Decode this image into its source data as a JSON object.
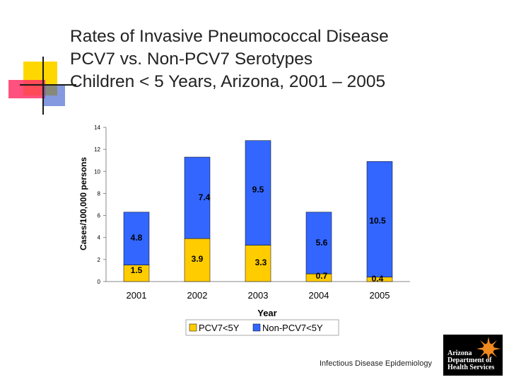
{
  "slide": {
    "title_lines": [
      "Rates of Invasive Pneumococcal Disease",
      "PCV7 vs. Non-PCV7 Serotypes",
      "Children < 5 Years, Arizona, 2001 – 2005"
    ],
    "footer_text": "Infectious Disease Epidemiology",
    "logo_lines": [
      "Arizona",
      "Department of",
      "Health Services"
    ]
  },
  "colors": {
    "pcv7": "#ffcc00",
    "non_pcv7": "#3366ff",
    "deco_yellow": "#ffd700",
    "deco_red": "#ff3366",
    "deco_blue": "#3355cc"
  },
  "chart_data": {
    "type": "bar",
    "stacked": true,
    "categories": [
      "2001",
      "2002",
      "2003",
      "2004",
      "2005"
    ],
    "series": [
      {
        "name": "PCV7<5Y",
        "values": [
          1.5,
          3.9,
          3.3,
          0.7,
          0.4
        ],
        "labels": [
          "1.5",
          "3.9",
          "3.3",
          "0.7",
          "0.4"
        ]
      },
      {
        "name": "Non-PCV7<5Y",
        "values": [
          4.8,
          7.4,
          9.5,
          5.6,
          10.5
        ],
        "labels": [
          "4.8",
          "7.4",
          "9.5",
          "5.6",
          "10.5"
        ]
      }
    ],
    "xlabel": "Year",
    "ylabel": "Cases/100,000 persons",
    "ylim": [
      0,
      14
    ],
    "yticks": [
      "0",
      "2",
      "4",
      "6",
      "8",
      "10",
      "12",
      "14"
    ],
    "legend_position": "bottom"
  }
}
